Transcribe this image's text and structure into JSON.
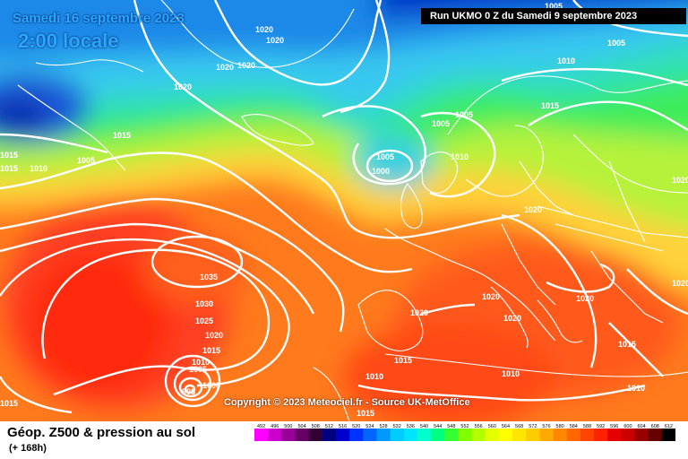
{
  "header": {
    "date": "Samedi 16 septembre 2023",
    "time": "2:00 locale",
    "run": "Run UKMO 0 Z du Samedi 9 septembre 2023"
  },
  "copyright": "Copyright © 2023 Meteociel.fr - Source UK-MetOffice",
  "footer": {
    "title": "Géop. Z500 & pression au sol",
    "subtitle": "(+ 168h)"
  },
  "legend": {
    "values": [
      "492",
      "496",
      "500",
      "504",
      "508",
      "512",
      "516",
      "520",
      "524",
      "528",
      "532",
      "536",
      "540",
      "544",
      "548",
      "552",
      "556",
      "560",
      "564",
      "568",
      "572",
      "576",
      "580",
      "584",
      "588",
      "592",
      "596",
      "600",
      "604",
      "608",
      "612"
    ],
    "colors": [
      "#ff00ff",
      "#cc00cc",
      "#990099",
      "#660066",
      "#330033",
      "#000080",
      "#0000cc",
      "#0033ff",
      "#0066ff",
      "#0099ff",
      "#00ccff",
      "#00e5ff",
      "#00ffcc",
      "#00ff80",
      "#33ff33",
      "#80ff00",
      "#b3ff00",
      "#e6ff00",
      "#ffff00",
      "#ffe600",
      "#ffcc00",
      "#ffaa00",
      "#ff8800",
      "#ff6600",
      "#ff4400",
      "#ff2200",
      "#e60000",
      "#cc0000",
      "#990000",
      "#660000",
      "#000000"
    ]
  },
  "isobar_labels": [
    "1005",
    "1020",
    "1020",
    "1020",
    "1020",
    "1020",
    "1015",
    "1005",
    "1010",
    "1015",
    "1015",
    "1005",
    "1005",
    "1005",
    "1000",
    "1010",
    "1020",
    "1035",
    "1030",
    "1025",
    "1020",
    "1015",
    "1010",
    "1005",
    "1000",
    "995",
    "1015",
    "1010",
    "1020",
    "1020",
    "1020",
    "1020",
    "1015",
    "1010",
    "1010",
    "1015",
    "1015",
    "1010",
    "1015",
    "1005",
    "1020",
    "1020"
  ]
}
